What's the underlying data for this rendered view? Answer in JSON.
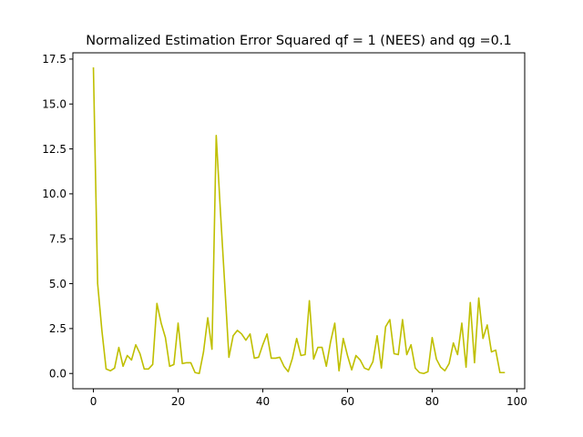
{
  "chart_data": {
    "type": "line",
    "title": "Normalized Estimation Error Squared qf = 1 (NEES) and qg =0.1",
    "xlabel": "",
    "ylabel": "",
    "xlim": [
      -4.85,
      101.85
    ],
    "ylim": [
      -0.85,
      17.85
    ],
    "xticks": [
      0,
      20,
      40,
      60,
      80,
      100
    ],
    "xtick_labels": [
      "0",
      "20",
      "40",
      "60",
      "80",
      "100"
    ],
    "yticks": [
      0.0,
      2.5,
      5.0,
      7.5,
      10.0,
      12.5,
      15.0,
      17.5
    ],
    "ytick_labels": [
      "0.0",
      "2.5",
      "5.0",
      "7.5",
      "10.0",
      "12.5",
      "15.0",
      "17.5"
    ],
    "grid": false,
    "legend": "none",
    "series": [
      {
        "color": "#bfbf00",
        "x": [
          0,
          1,
          2,
          3,
          4,
          5,
          6,
          7,
          8,
          9,
          10,
          11,
          12,
          13,
          14,
          15,
          16,
          17,
          18,
          19,
          20,
          21,
          22,
          23,
          24,
          25,
          26,
          27,
          28,
          29,
          30,
          31,
          32,
          33,
          34,
          35,
          36,
          37,
          38,
          39,
          40,
          41,
          42,
          43,
          44,
          45,
          46,
          47,
          48,
          49,
          50,
          51,
          52,
          53,
          54,
          55,
          56,
          57,
          58,
          59,
          60,
          61,
          62,
          63,
          64,
          65,
          66,
          67,
          68,
          69,
          70,
          71,
          72,
          73,
          74,
          75,
          76,
          77,
          78,
          79,
          80,
          81,
          82,
          83,
          84,
          85,
          86,
          87,
          88,
          89,
          90,
          91,
          92,
          93,
          94,
          95,
          96,
          97
        ],
        "y": [
          17.0,
          5.0,
          2.4,
          0.25,
          0.15,
          0.3,
          1.45,
          0.4,
          1.0,
          0.75,
          1.6,
          1.1,
          0.25,
          0.25,
          0.5,
          3.9,
          2.8,
          2.0,
          0.4,
          0.5,
          2.8,
          0.55,
          0.6,
          0.6,
          0.05,
          0.0,
          1.2,
          3.1,
          1.35,
          13.25,
          9.0,
          5.0,
          0.9,
          2.1,
          2.4,
          2.2,
          1.85,
          2.2,
          0.85,
          0.9,
          1.6,
          2.2,
          0.85,
          0.85,
          0.9,
          0.4,
          0.1,
          0.85,
          1.95,
          1.0,
          1.05,
          4.05,
          0.8,
          1.45,
          1.45,
          0.4,
          1.75,
          2.8,
          0.15,
          1.95,
          1.0,
          0.2,
          1.0,
          0.75,
          0.3,
          0.2,
          0.65,
          2.1,
          0.3,
          2.6,
          3.0,
          1.1,
          1.05,
          3.0,
          1.05,
          1.6,
          0.3,
          0.05,
          0.0,
          0.1,
          2.0,
          0.8,
          0.35,
          0.15,
          0.55,
          1.7,
          1.05,
          2.8,
          0.35,
          3.95,
          0.6,
          4.2,
          1.95,
          2.7,
          1.2,
          1.3,
          0.05,
          0.05
        ]
      }
    ]
  }
}
